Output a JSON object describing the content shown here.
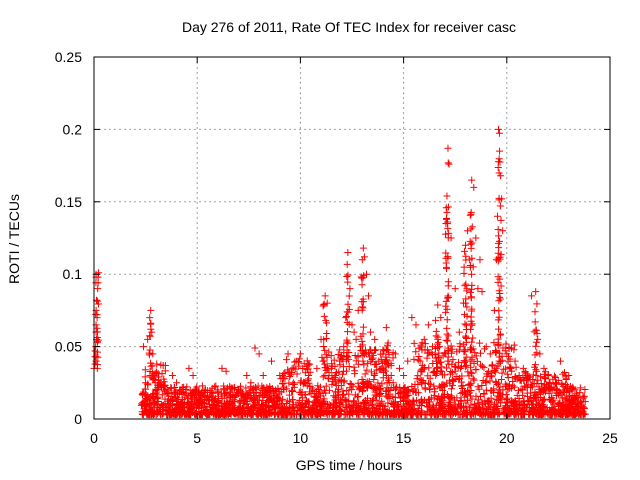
{
  "chart_data": {
    "type": "scatter",
    "title": "Day 276 of 2011, Rate Of TEC Index for receiver casc",
    "xlabel": "GPS time / hours",
    "ylabel": "ROTI / TECUs",
    "xlim": [
      0,
      25
    ],
    "ylim": [
      0,
      0.25
    ],
    "x_ticks": [
      0,
      5,
      10,
      15,
      20,
      25
    ],
    "x_tick_labels": [
      "0",
      "5",
      "10",
      "15",
      "20",
      "25"
    ],
    "y_ticks": [
      0,
      0.05,
      0.1,
      0.15,
      0.2,
      0.25
    ],
    "y_tick_labels": [
      "0",
      "0.05",
      "0.1",
      "0.15",
      "0.2",
      "0.25"
    ],
    "grid": true,
    "marker": "+",
    "series": [
      {
        "name": "ROTI",
        "color": "#ff0000",
        "x": [
          0.0,
          0.05,
          0.1,
          0.15,
          0.2,
          0.1,
          0.08,
          0.12,
          0.05,
          0.15,
          0.1,
          0.05,
          0.12,
          0.18,
          0.2,
          0.22,
          0.1,
          2.4,
          2.5,
          2.6,
          2.7,
          2.75,
          2.8,
          2.85,
          2.9,
          3.0,
          3.1,
          3.2,
          3.4,
          3.6,
          3.8,
          4.0,
          4.2,
          4.4,
          4.6,
          4.8,
          5.0,
          5.2,
          5.4,
          5.6,
          5.8,
          6.0,
          6.2,
          6.4,
          6.6,
          6.8,
          7.0,
          7.2,
          7.4,
          7.6,
          7.8,
          8.0,
          8.2,
          8.4,
          8.6,
          8.8,
          9.0,
          9.2,
          9.4,
          9.6,
          9.8,
          10.0,
          10.2,
          10.4,
          10.6,
          10.8,
          11.0,
          11.1,
          11.2,
          11.3,
          11.5,
          11.7,
          11.9,
          12.1,
          12.2,
          12.3,
          12.4,
          12.5,
          12.6,
          12.7,
          12.8,
          12.9,
          13.0,
          13.05,
          13.1,
          13.2,
          13.3,
          13.4,
          13.6,
          13.8,
          14.0,
          14.2,
          14.4,
          14.6,
          14.8,
          15.0,
          15.2,
          15.4,
          15.6,
          15.8,
          16.0,
          16.2,
          16.4,
          16.6,
          16.8,
          17.0,
          17.05,
          17.1,
          17.15,
          17.2,
          17.3,
          17.5,
          17.7,
          17.9,
          18.0,
          18.1,
          18.2,
          18.3,
          18.4,
          18.5,
          18.6,
          18.7,
          18.8,
          19.0,
          19.2,
          19.4,
          19.5,
          19.55,
          19.6,
          19.65,
          19.7,
          19.75,
          19.8,
          20.0,
          20.2,
          20.4,
          20.6,
          20.8,
          21.0,
          21.2,
          21.4,
          21.5,
          21.6,
          21.8,
          22.0,
          22.2,
          22.4,
          22.6,
          22.8,
          23.0,
          23.2,
          23.4,
          23.6,
          23.8
        ],
        "y": [
          0.035,
          0.043,
          0.06,
          0.07,
          0.094,
          0.1,
          0.05,
          0.082,
          0.038,
          0.072,
          0.065,
          0.047,
          0.055,
          0.09,
          0.098,
          0.101,
          0.04,
          0.05,
          0.025,
          0.055,
          0.07,
          0.075,
          0.06,
          0.045,
          0.03,
          0.02,
          0.015,
          0.025,
          0.02,
          0.018,
          0.03,
          0.025,
          0.02,
          0.015,
          0.035,
          0.03,
          0.01,
          0.008,
          0.02,
          0.015,
          0.01,
          0.02,
          0.035,
          0.033,
          0.015,
          0.012,
          0.02,
          0.018,
          0.03,
          0.025,
          0.049,
          0.045,
          0.03,
          0.02,
          0.04,
          0.02,
          0.03,
          0.022,
          0.045,
          0.035,
          0.04,
          0.045,
          0.025,
          0.03,
          0.02,
          0.035,
          0.055,
          0.078,
          0.085,
          0.08,
          0.035,
          0.03,
          0.04,
          0.05,
          0.07,
          0.115,
          0.09,
          0.065,
          0.06,
          0.055,
          0.075,
          0.05,
          0.11,
          0.118,
          0.112,
          0.1,
          0.085,
          0.06,
          0.055,
          0.04,
          0.045,
          0.025,
          0.03,
          0.045,
          0.035,
          0.03,
          0.04,
          0.07,
          0.065,
          0.04,
          0.055,
          0.065,
          0.05,
          0.035,
          0.07,
          0.045,
          0.135,
          0.154,
          0.187,
          0.176,
          0.125,
          0.09,
          0.06,
          0.08,
          0.12,
          0.13,
          0.11,
          0.165,
          0.16,
          0.125,
          0.09,
          0.11,
          0.088,
          0.05,
          0.045,
          0.075,
          0.11,
          0.14,
          0.2,
          0.185,
          0.168,
          0.152,
          0.13,
          0.045,
          0.035,
          0.04,
          0.03,
          0.035,
          0.03,
          0.085,
          0.088,
          0.055,
          0.045,
          0.035,
          0.03,
          0.02,
          0.025,
          0.04,
          0.02,
          0.03,
          0.022,
          0.015,
          0.012,
          0.012
        ]
      }
    ],
    "dense_band": {
      "description_values": "baseline noise mostly between 0 and 0.04 from 2.3 to 23.8 hours"
    }
  }
}
